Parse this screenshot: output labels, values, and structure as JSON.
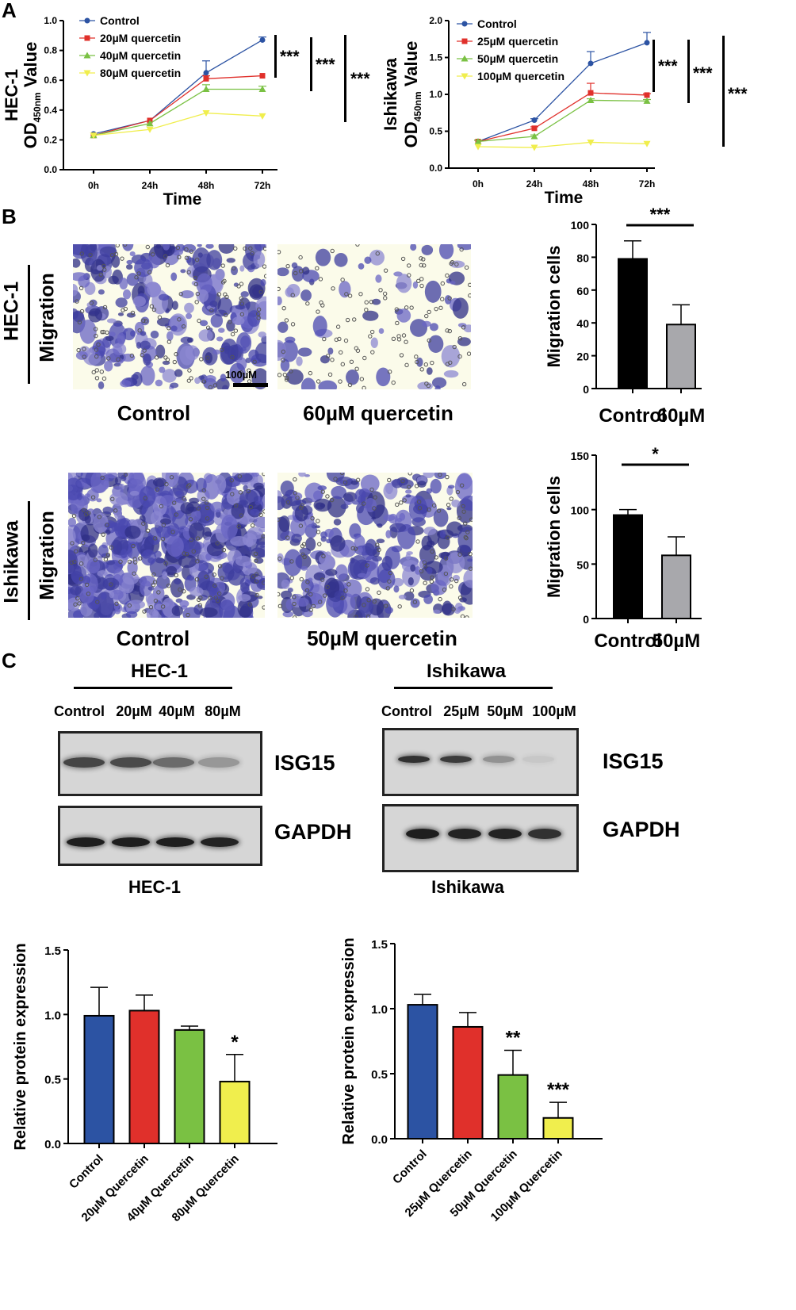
{
  "panels": {
    "a": "A",
    "b": "B",
    "c": "C"
  },
  "panel_a": {
    "sig_left": [
      "***",
      "***",
      "***"
    ],
    "sig_right": [
      "***",
      "***",
      "***"
    ]
  },
  "panel_b": {
    "hec1": {
      "cell_line": "HEC-1",
      "assay": "Migration",
      "caption_left": "Control",
      "caption_right": "60µM quercetin",
      "scale_bar": "100µM"
    },
    "ishikawa": {
      "cell_line": "Ishikawa",
      "assay": "Migration",
      "caption_left": "Control",
      "caption_right": "50µM quercetin"
    }
  },
  "panel_c_blots": {
    "hec1": {
      "title": "HEC-1",
      "lanes": [
        "Control",
        "20µM",
        "40µM",
        "80µM"
      ],
      "protein_top": "ISG15",
      "protein_bottom": "GAPDH",
      "footer": "HEC-1"
    },
    "ishikawa": {
      "title": "Ishikawa",
      "lanes": [
        "Control",
        "25µM",
        "50µM",
        "100µM"
      ],
      "protein_top": "ISG15",
      "protein_bottom": "GAPDH",
      "footer": "Ishikawa"
    }
  },
  "colors": {
    "control": "#2c53a3",
    "dose1": "#e0302b",
    "dose2": "#7ac143",
    "dose3": "#f0ee4d",
    "bar_control": "#000000",
    "bar_treated": "#a8a8ac"
  },
  "chart_data": [
    {
      "id": "a-hec1",
      "type": "line",
      "ylabel_main": "HEC-1",
      "ylabel_od": "OD",
      "ylabel_sub": "450nm",
      "ylabel_tail": " Value",
      "xlabel": "Time",
      "categories": [
        "0h",
        "24h",
        "48h",
        "72h"
      ],
      "ylim": [
        0,
        1.0
      ],
      "yticks": [
        "0.0",
        "0.2",
        "0.4",
        "0.6",
        "0.8",
        "1.0"
      ],
      "legend": "top-left",
      "series": [
        {
          "name": "Control",
          "values": [
            0.24,
            0.33,
            0.65,
            0.87
          ],
          "err": [
            0.01,
            0.01,
            0.08,
            0.02
          ]
        },
        {
          "name": "20µM quercetin",
          "values": [
            0.23,
            0.33,
            0.61,
            0.63
          ],
          "err": [
            0.01,
            0.01,
            0.02,
            0.01
          ]
        },
        {
          "name": "40µM quercetin",
          "values": [
            0.23,
            0.31,
            0.54,
            0.54
          ],
          "err": [
            0.01,
            0.01,
            0.03,
            0.02
          ]
        },
        {
          "name": "80µM quercetin",
          "values": [
            0.23,
            0.27,
            0.38,
            0.36
          ],
          "err": [
            0.01,
            0.01,
            0.01,
            0.01
          ]
        }
      ]
    },
    {
      "id": "a-ishikawa",
      "type": "line",
      "ylabel_main": "Ishikawa",
      "ylabel_od": "OD",
      "ylabel_sub": "450nm",
      "ylabel_tail": " Value",
      "xlabel": "Time",
      "categories": [
        "0h",
        "24h",
        "48h",
        "72h"
      ],
      "ylim": [
        0,
        2.0
      ],
      "yticks": [
        "0.0",
        "0.5",
        "1.0",
        "1.5",
        "2.0"
      ],
      "legend": "top-left",
      "series": [
        {
          "name": "Control",
          "values": [
            0.36,
            0.65,
            1.42,
            1.7
          ],
          "err": [
            0.02,
            0.02,
            0.16,
            0.14
          ]
        },
        {
          "name": "25µM quercetin",
          "values": [
            0.36,
            0.54,
            1.02,
            0.99
          ],
          "err": [
            0.02,
            0.02,
            0.13,
            0.02
          ]
        },
        {
          "name": "50µM quercetin",
          "values": [
            0.36,
            0.43,
            0.92,
            0.91
          ],
          "err": [
            0.02,
            0.02,
            0.02,
            0.02
          ]
        },
        {
          "name": "100µM quercetin",
          "values": [
            0.29,
            0.28,
            0.35,
            0.33
          ],
          "err": [
            0.01,
            0.01,
            0.01,
            0.01
          ]
        }
      ]
    },
    {
      "id": "b-hec1",
      "type": "bar",
      "ylabel": "Migration cells",
      "categories": [
        "Control",
        "60µM"
      ],
      "values": [
        79,
        39
      ],
      "err": [
        11,
        12
      ],
      "ylim": [
        0,
        100
      ],
      "yticks": [
        "0",
        "20",
        "40",
        "60",
        "80",
        "100"
      ],
      "significance": "***"
    },
    {
      "id": "b-ishikawa",
      "type": "bar",
      "ylabel": "Migration cells",
      "categories": [
        "Control",
        "50µM"
      ],
      "values": [
        95,
        58
      ],
      "err": [
        5,
        17
      ],
      "ylim": [
        0,
        150
      ],
      "yticks": [
        "0",
        "50",
        "100",
        "150"
      ],
      "significance": "*"
    },
    {
      "id": "c-hec1",
      "type": "bar",
      "ylabel": "Relative  protein  expression",
      "categories": [
        "Control",
        "20µM Quercetin",
        "40µM Quercetin",
        "80µM Quercetin"
      ],
      "values": [
        0.99,
        1.03,
        0.88,
        0.48
      ],
      "err": [
        0.22,
        0.12,
        0.03,
        0.21
      ],
      "ylim": [
        0,
        1.5
      ],
      "yticks": [
        "0.0",
        "0.5",
        "1.0",
        "1.5"
      ],
      "significance": [
        "",
        "",
        "",
        "*"
      ]
    },
    {
      "id": "c-ishikawa",
      "type": "bar",
      "ylabel": "Relative  protein  expression",
      "categories": [
        "Control",
        "25µM Quercetin",
        "50µM Quercetin",
        "100µM Quercetin"
      ],
      "values": [
        1.03,
        0.86,
        0.49,
        0.16
      ],
      "err": [
        0.08,
        0.11,
        0.19,
        0.12
      ],
      "ylim": [
        0,
        1.5
      ],
      "yticks": [
        "0.0",
        "0.5",
        "1.0",
        "1.5"
      ],
      "significance": [
        "",
        "",
        "**",
        "***"
      ]
    }
  ]
}
